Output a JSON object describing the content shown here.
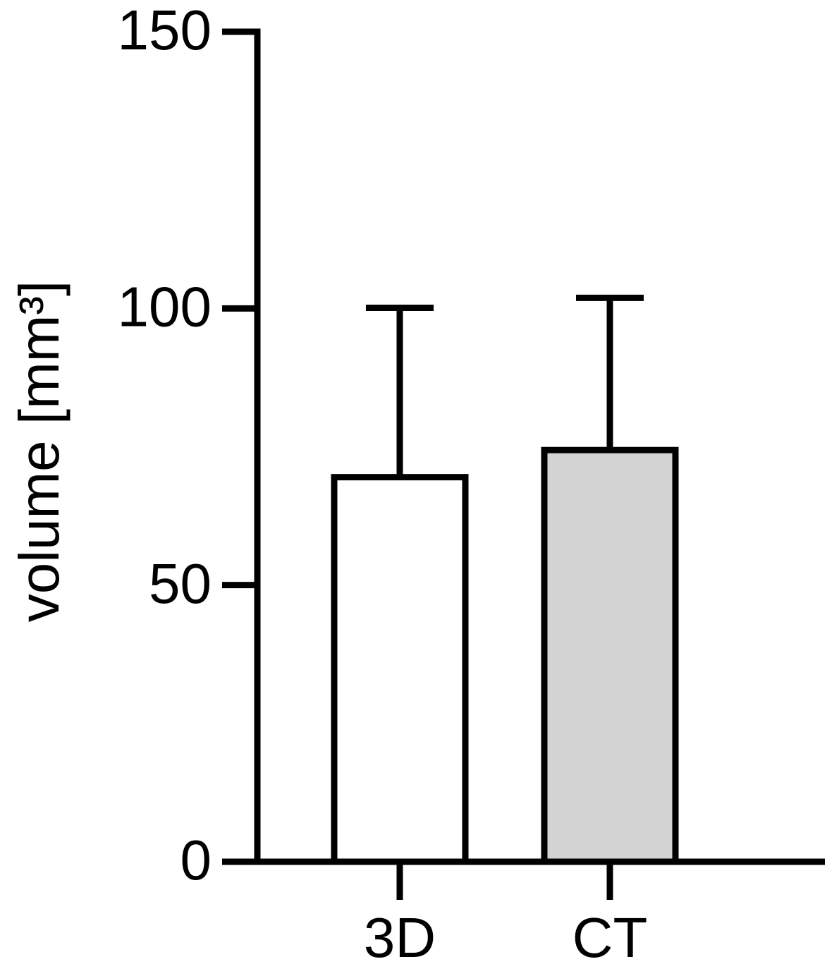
{
  "chart_data": {
    "type": "bar",
    "ylabel": "volume [mm³]",
    "categories": [
      "3D",
      "CT"
    ],
    "values": [
      69.5,
      74.4
    ],
    "errors": [
      30.6,
      27.5
    ],
    "colors": [
      "#ffffff",
      "#d3d3d3"
    ],
    "ylim": [
      0,
      150
    ],
    "yticks": [
      0,
      50,
      100,
      150
    ],
    "grid": false
  }
}
